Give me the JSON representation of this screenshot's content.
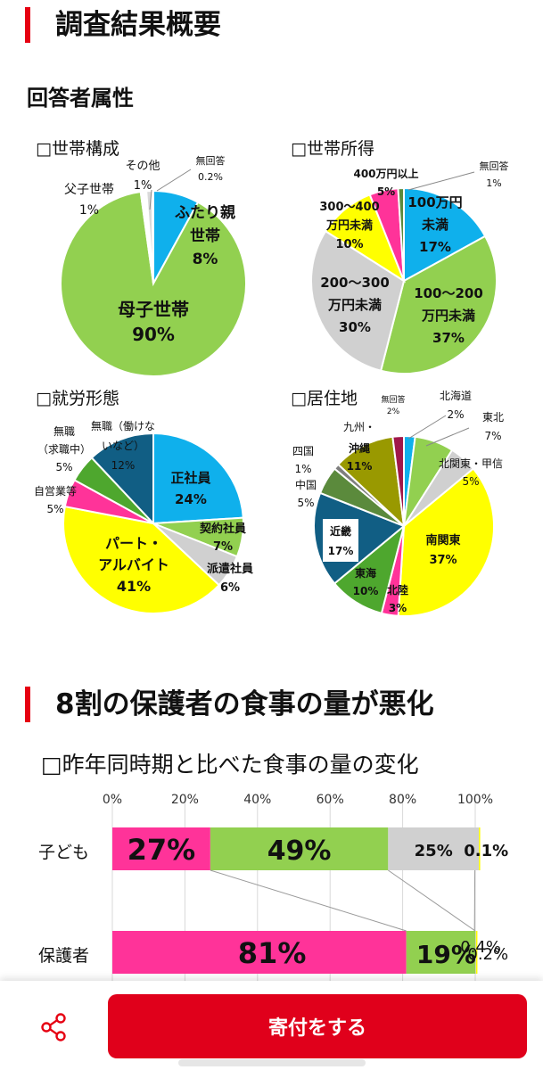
{
  "section1": {
    "heading": "調査結果概要",
    "subheading": "回答者属性"
  },
  "section2": {
    "heading": "8割の保護者の食事の量が悪化"
  },
  "colors": {
    "accent": "#e60012",
    "blue": "#0fb0ec",
    "green": "#92d050",
    "gray": "#d0d0d0",
    "yellow": "#ffff00",
    "pink": "#ff3399",
    "navy": "#115e84",
    "olive": "#999900",
    "darkgreen": "#5b8a3c",
    "maroon": "#a0174a",
    "darkgray": "#7f7f7f"
  },
  "chart_data": [
    {
      "type": "pie",
      "title": "□世帯構成",
      "slices": [
        {
          "label": "ふたり親世帯",
          "value": 8,
          "value_label": "8%",
          "color": "#0fb0ec"
        },
        {
          "label": "母子世帯",
          "value": 90,
          "value_label": "90%",
          "color": "#92d050"
        },
        {
          "label": "父子世帯",
          "value": 1,
          "value_label": "1%",
          "color": "#ffffff"
        },
        {
          "label": "その他",
          "value": 1,
          "value_label": "1%",
          "color": "#d9d9d9"
        },
        {
          "label": "無回答",
          "value": 0.2,
          "value_label": "0.2%",
          "color": "#ffff00"
        }
      ]
    },
    {
      "type": "pie",
      "title": "□世帯所得",
      "slices": [
        {
          "label": "100万円未満",
          "value": 17,
          "value_label": "17%",
          "color": "#0fb0ec"
        },
        {
          "label": "100〜200万円未満",
          "value": 37,
          "value_label": "37%",
          "color": "#92d050"
        },
        {
          "label": "200〜300万円未満",
          "value": 30,
          "value_label": "30%",
          "color": "#d0d0d0"
        },
        {
          "label": "300〜400万円未満",
          "value": 10,
          "value_label": "10%",
          "color": "#ffff00"
        },
        {
          "label": "400万円以上",
          "value": 5,
          "value_label": "5%",
          "color": "#ff3399"
        },
        {
          "label": "無回答",
          "value": 1,
          "value_label": "1%",
          "color": "#5b8a3c"
        }
      ]
    },
    {
      "type": "pie",
      "title": "□就労形態",
      "slices": [
        {
          "label": "正社員",
          "value": 24,
          "value_label": "24%",
          "color": "#0fb0ec"
        },
        {
          "label": "契約社員",
          "value": 7,
          "value_label": "7%",
          "color": "#92d050"
        },
        {
          "label": "派遣社員",
          "value": 6,
          "value_label": "6%",
          "color": "#d0d0d0"
        },
        {
          "label": "パート・アルバイト",
          "value": 41,
          "value_label": "41%",
          "color": "#ffff00"
        },
        {
          "label": "自営業等",
          "value": 5,
          "value_label": "5%",
          "color": "#ff3399"
        },
        {
          "label": "無職（求職中）",
          "value": 5,
          "value_label": "5%",
          "color": "#4ea72e"
        },
        {
          "label": "無職（働けないなど）",
          "value": 12,
          "value_label": "12%",
          "color": "#115e84"
        }
      ]
    },
    {
      "type": "pie",
      "title": "□居住地",
      "slices": [
        {
          "label": "北海道",
          "value": 2,
          "value_label": "2%",
          "color": "#0fb0ec"
        },
        {
          "label": "東北",
          "value": 7,
          "value_label": "7%",
          "color": "#92d050"
        },
        {
          "label": "北関東・甲信",
          "value": 5,
          "value_label": "5%",
          "color": "#d0d0d0"
        },
        {
          "label": "南関東",
          "value": 37,
          "value_label": "37%",
          "color": "#ffff00"
        },
        {
          "label": "北陸",
          "value": 3,
          "value_label": "3%",
          "color": "#ff3399"
        },
        {
          "label": "東海",
          "value": 10,
          "value_label": "10%",
          "color": "#4ea72e"
        },
        {
          "label": "近畿",
          "value": 17,
          "value_label": "17%",
          "color": "#115e84"
        },
        {
          "label": "中国",
          "value": 5,
          "value_label": "5%",
          "color": "#5b8a3c"
        },
        {
          "label": "四国",
          "value": 1,
          "value_label": "1%",
          "color": "#7f7f7f"
        },
        {
          "label": "沖縄",
          "value": 11,
          "value_label": "11%",
          "color": "#999900"
        },
        {
          "label": "九州・",
          "value": 0,
          "value_label": "",
          "color": "#999900"
        },
        {
          "label": "無回答",
          "value": 2,
          "value_label": "2%",
          "color": "#a0174a"
        }
      ]
    },
    {
      "type": "bar",
      "orientation": "horizontal",
      "stacked": true,
      "title": "□昨年同時期と比べた食事の量の変化",
      "xlim": [
        0,
        100
      ],
      "x_ticks": [
        "0%",
        "20%",
        "40%",
        "60%",
        "80%",
        "100%"
      ],
      "categories": [
        "子ども",
        "保護者"
      ],
      "series": [
        {
          "values": [
            27,
            81
          ],
          "labels": [
            "27%",
            "81%"
          ],
          "color": "#ff3399"
        },
        {
          "values": [
            49,
            19
          ],
          "labels": [
            "49%",
            "19%"
          ],
          "color": "#92d050"
        },
        {
          "values": [
            25,
            0.2
          ],
          "labels": [
            "25%",
            "0.2%"
          ],
          "color": "#d0d0d0"
        },
        {
          "values": [
            0.1,
            0.4
          ],
          "labels": [
            "0.1%",
            "0.4%"
          ],
          "color": "#ffff00"
        }
      ]
    }
  ],
  "bottom_bar": {
    "share_icon": "share-icon",
    "donate_label": "寄付をする"
  }
}
